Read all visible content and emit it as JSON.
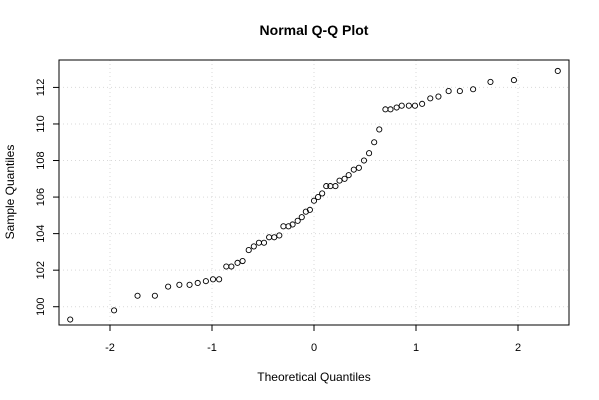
{
  "chart_data": {
    "type": "scatter",
    "title": "Normal Q-Q Plot",
    "xlabel": "Theoretical Quantiles",
    "ylabel": "Sample Quantiles",
    "xlim": [
      -2.5,
      2.5
    ],
    "ylim": [
      99.0,
      113.5
    ],
    "xticks": [
      -2,
      -1,
      0,
      1,
      2
    ],
    "xtick_labels": [
      "-2",
      "-1",
      "0",
      "1",
      "2"
    ],
    "yticks": [
      100,
      102,
      104,
      106,
      108,
      110,
      112
    ],
    "ytick_labels": [
      "100",
      "102",
      "104",
      "106",
      "108",
      "110",
      "112"
    ],
    "grid": true,
    "x": [
      -2.39,
      -1.96,
      -1.73,
      -1.56,
      -1.43,
      -1.32,
      -1.22,
      -1.14,
      -1.06,
      -0.99,
      -0.93,
      -0.86,
      -0.81,
      -0.75,
      -0.7,
      -0.64,
      -0.59,
      -0.54,
      -0.49,
      -0.44,
      -0.39,
      -0.34,
      -0.3,
      -0.25,
      -0.21,
      -0.16,
      -0.12,
      -0.08,
      -0.04,
      0.0,
      0.04,
      0.08,
      0.12,
      0.16,
      0.21,
      0.25,
      0.3,
      0.34,
      0.39,
      0.44,
      0.49,
      0.54,
      0.59,
      0.64,
      0.7,
      0.75,
      0.81,
      0.86,
      0.93,
      0.99,
      1.06,
      1.14,
      1.22,
      1.32,
      1.43,
      1.56,
      1.73,
      1.96,
      2.39
    ],
    "y": [
      99.3,
      99.8,
      100.6,
      100.6,
      101.1,
      101.2,
      101.2,
      101.3,
      101.4,
      101.5,
      101.5,
      102.2,
      102.2,
      102.4,
      102.5,
      103.1,
      103.3,
      103.5,
      103.5,
      103.8,
      103.8,
      103.9,
      104.4,
      104.4,
      104.5,
      104.7,
      104.9,
      105.2,
      105.3,
      105.8,
      106.0,
      106.2,
      106.6,
      106.6,
      106.6,
      106.9,
      107.0,
      107.2,
      107.5,
      107.6,
      108.0,
      108.4,
      109.0,
      109.7,
      110.8,
      110.8,
      110.9,
      111.0,
      111.0,
      111.0,
      111.1,
      111.4,
      111.5,
      111.8,
      111.8,
      111.9,
      112.3,
      112.4,
      112.9
    ]
  }
}
